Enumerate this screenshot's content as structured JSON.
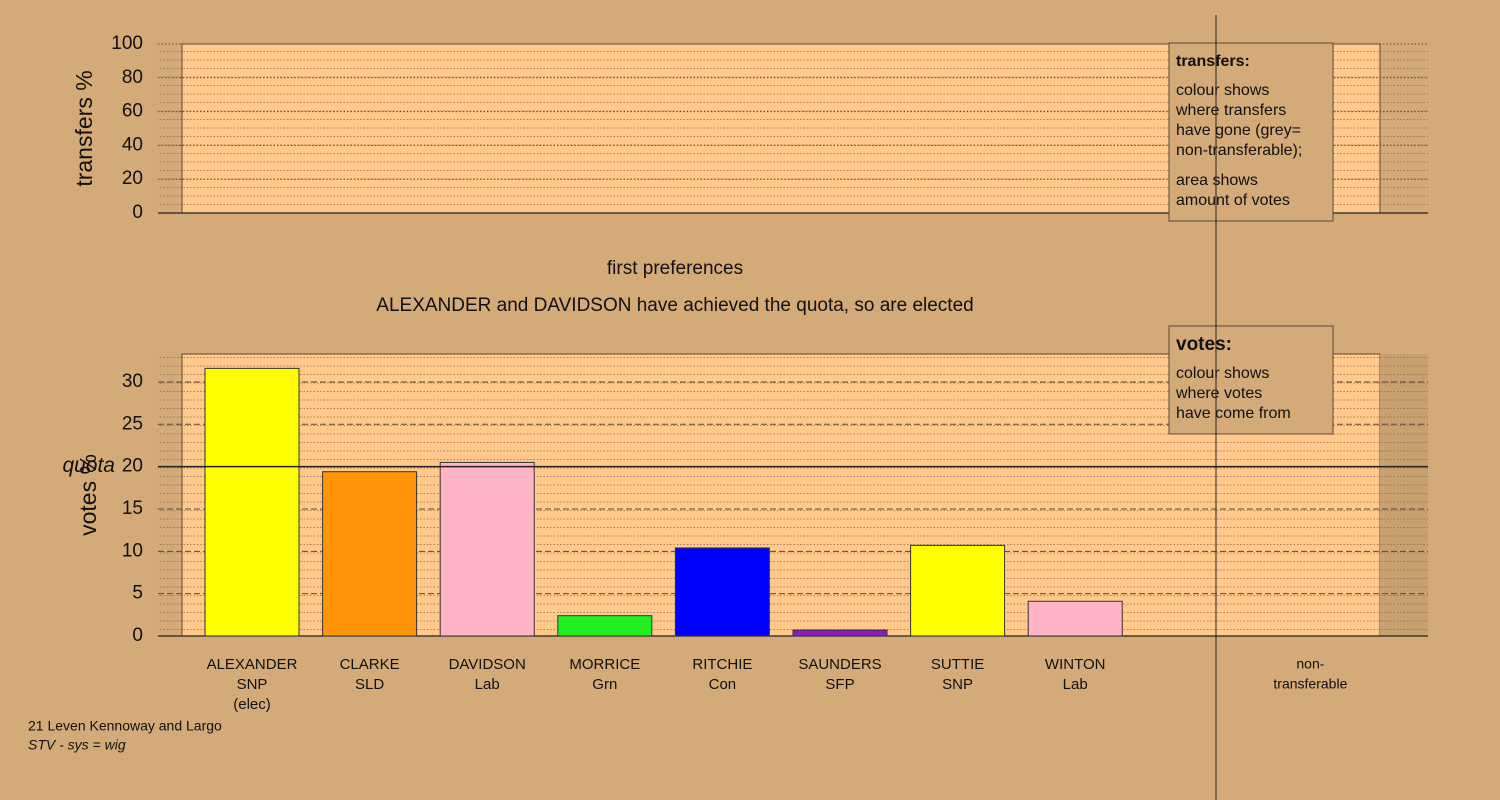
{
  "chart_data": [
    {
      "type": "bar",
      "y_label": "transfers %",
      "ylim": [
        0,
        100
      ],
      "yticks": [
        0,
        20,
        40,
        60,
        80,
        100
      ],
      "grid": true,
      "legend": {
        "title": "transfers:",
        "paragraphs": [
          [
            "colour shows",
            "where transfers",
            "have gone (grey=",
            "non-transferable);"
          ],
          [
            "area shows",
            "amount of votes"
          ]
        ]
      }
    },
    {
      "type": "bar",
      "y_label": "votes %",
      "categories": [
        [
          "ALEXANDER",
          "SNP",
          "(elec)"
        ],
        [
          "CLARKE",
          "SLD"
        ],
        [
          "DAVIDSON",
          "Lab"
        ],
        [
          "MORRICE",
          "Grn"
        ],
        [
          "RITCHIE",
          "Con"
        ],
        [
          "SAUNDERS",
          "SFP"
        ],
        [
          "SUTTIE",
          "SNP"
        ],
        [
          "WINTON",
          "Lab"
        ]
      ],
      "values": [
        31.6,
        19.4,
        20.5,
        2.4,
        10.4,
        0.7,
        10.7,
        4.1
      ],
      "colors": [
        "#ffff00",
        "#ff9408",
        "#ffb3c6",
        "#22ee22",
        "#0000ff",
        "#8a1ac4",
        "#ffff00",
        "#ffb3c6"
      ],
      "extra_column": [
        "non-",
        "transferable"
      ],
      "quota": 20,
      "quota_label": "quota",
      "ylim": [
        0,
        33.3
      ],
      "yticks": [
        0,
        5,
        10,
        15,
        20,
        25,
        30
      ],
      "grid": true,
      "legend": {
        "title": "votes:",
        "paragraphs": [
          [
            "colour shows",
            "where votes",
            "have come from"
          ]
        ]
      }
    }
  ],
  "heading": "first preferences",
  "message": "ALEXANDER and DAVIDSON have achieved the quota, so are elected",
  "footer": [
    "21 Leven Kennoway and Largo",
    "STV - sys = wig"
  ]
}
